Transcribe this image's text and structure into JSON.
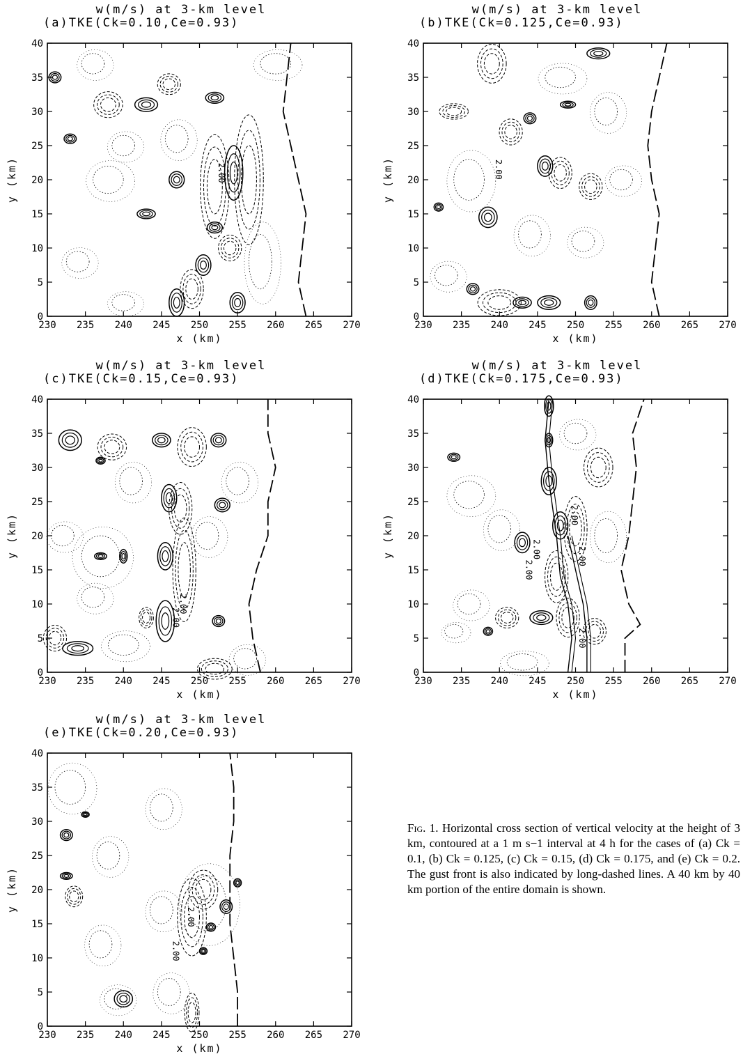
{
  "caption": {
    "lead": "Fig. 1.",
    "text": "Horizontal cross section of vertical velocity at the height of 3 km, contoured at a 1 m s−1 interval at 4 h for the cases of (a) Ck = 0.1, (b) Ck = 0.125, (c) Ck = 0.15, (d) Ck = 0.175, and (e) Ck = 0.2. The gust front is also indicated by long-dashed lines. A 40 km by 40 km portion of the entire domain is shown."
  },
  "chart_data": [
    {
      "type": "contour",
      "title": "w(m/s) at 3-km level",
      "subtitle": "(a)TKE(Ck=0.10,Ce=0.93)",
      "xlabel": "x (km)",
      "ylabel": "y (km)",
      "xlim": [
        230,
        270
      ],
      "ylim": [
        0,
        40
      ],
      "xticks": [
        230,
        235,
        240,
        245,
        250,
        255,
        260,
        265,
        270
      ],
      "yticks": [
        0,
        5,
        10,
        15,
        20,
        25,
        30,
        35,
        40
      ],
      "contour_interval": 1,
      "contour_labels": [
        {
          "text": "2.00",
          "x": 252.5,
          "y": 21
        }
      ],
      "gust_front": [
        [
          264,
          0
        ],
        [
          263,
          5
        ],
        [
          263.5,
          10
        ],
        [
          264,
          15
        ],
        [
          263,
          20
        ],
        [
          262,
          25
        ],
        [
          261,
          30
        ],
        [
          261.5,
          35
        ],
        [
          262,
          40
        ]
      ],
      "updrafts": [
        [
          254.5,
          21,
          1.2,
          4
        ],
        [
          247,
          2,
          1,
          2
        ],
        [
          243,
          31,
          1.5,
          1
        ],
        [
          252,
          32,
          1.2,
          0.8
        ],
        [
          250.5,
          7.5,
          1,
          1.5
        ],
        [
          233,
          26,
          0.8,
          0.7
        ],
        [
          252,
          13,
          1,
          0.8
        ],
        [
          247,
          20,
          1,
          1.2
        ],
        [
          243,
          15,
          1.2,
          0.7
        ],
        [
          231,
          35,
          0.8,
          0.8
        ],
        [
          255,
          2,
          1,
          1.5
        ]
      ],
      "downdrafts": [
        [
          256.5,
          20,
          1,
          5
        ],
        [
          252,
          19,
          1,
          4
        ],
        [
          249,
          4,
          0.8,
          1.5
        ],
        [
          238,
          31,
          1,
          1
        ],
        [
          246,
          34,
          0.8,
          0.8
        ],
        [
          254,
          10,
          0.8,
          1
        ]
      ],
      "weak": [
        [
          236,
          37,
          1.5,
          1.5
        ],
        [
          260,
          37,
          2,
          1.5
        ],
        [
          238,
          20,
          2,
          2
        ],
        [
          240,
          25,
          1.5,
          1.5
        ],
        [
          234,
          8,
          1.5,
          1.5
        ],
        [
          247,
          26,
          1.5,
          2
        ],
        [
          258,
          8,
          1.5,
          4
        ],
        [
          240,
          2,
          1.5,
          1.2
        ]
      ]
    },
    {
      "type": "contour",
      "title": "w(m/s) at 3-km level",
      "subtitle": "(b)TKE(Ck=0.125,Ce=0.93)",
      "xlabel": "x (km)",
      "ylabel": "y (km)",
      "xlim": [
        230,
        270
      ],
      "ylim": [
        0,
        40
      ],
      "xticks": [
        230,
        235,
        240,
        245,
        250,
        255,
        260,
        265,
        270
      ],
      "yticks": [
        0,
        5,
        10,
        15,
        20,
        25,
        30,
        35,
        40
      ],
      "contour_interval": 1,
      "contour_labels": [
        {
          "text": "2.00",
          "x": 239.5,
          "y": 21.5
        }
      ],
      "gust_front": [
        [
          261,
          0
        ],
        [
          260,
          5
        ],
        [
          260.5,
          10
        ],
        [
          261,
          15
        ],
        [
          260,
          20
        ],
        [
          259.5,
          25
        ],
        [
          260,
          30
        ],
        [
          261,
          35
        ],
        [
          262,
          40
        ]
      ],
      "updrafts": [
        [
          253,
          38.5,
          1.5,
          0.8
        ],
        [
          246.5,
          2,
          1.5,
          1
        ],
        [
          236.5,
          4,
          0.8,
          0.8
        ],
        [
          232,
          16,
          0.6,
          0.6
        ],
        [
          244,
          29,
          0.8,
          0.8
        ],
        [
          246,
          22,
          1,
          1.5
        ],
        [
          249,
          31,
          1,
          0.5
        ],
        [
          252,
          2,
          0.8,
          1
        ],
        [
          243,
          2,
          1.2,
          0.8
        ],
        [
          238.5,
          14.5,
          1.2,
          1.5
        ]
      ],
      "downdrafts": [
        [
          241.5,
          27,
          0.8,
          1
        ],
        [
          248,
          21,
          0.8,
          1.2
        ],
        [
          234,
          30,
          1,
          0.6
        ],
        [
          239,
          37,
          1,
          1.5
        ],
        [
          252,
          19,
          0.8,
          1
        ],
        [
          240,
          2,
          1.5,
          1
        ]
      ],
      "weak": [
        [
          236,
          20,
          2,
          3
        ],
        [
          244,
          12,
          1.5,
          2
        ],
        [
          251,
          11,
          1.5,
          1.5
        ],
        [
          256,
          20,
          1.5,
          1.5
        ],
        [
          254,
          30,
          1.5,
          2
        ],
        [
          248,
          35,
          2,
          1.5
        ],
        [
          233,
          6,
          1.5,
          1.5
        ]
      ]
    },
    {
      "type": "contour",
      "title": "w(m/s) at 3-km level",
      "subtitle": "(c)TKE(Ck=0.15,Ce=0.93)",
      "xlabel": "x (km)",
      "ylabel": "y (km)",
      "xlim": [
        230,
        270
      ],
      "ylim": [
        0,
        40
      ],
      "xticks": [
        230,
        235,
        240,
        245,
        250,
        255,
        260,
        265,
        270
      ],
      "yticks": [
        0,
        5,
        10,
        15,
        20,
        25,
        30,
        35,
        40
      ],
      "contour_interval": 1,
      "contour_labels": [
        {
          "text": "2.00",
          "x": 247.5,
          "y": 10
        },
        {
          "text": "2.00",
          "x": 246.5,
          "y": 8
        }
      ],
      "gust_front": [
        [
          258,
          0
        ],
        [
          257,
          5
        ],
        [
          256.5,
          10
        ],
        [
          257.5,
          15
        ],
        [
          259,
          20
        ],
        [
          259,
          25
        ],
        [
          260,
          30
        ],
        [
          259,
          35
        ],
        [
          259,
          40
        ]
      ],
      "updrafts": [
        [
          245.5,
          7.5,
          1.2,
          3
        ],
        [
          245.5,
          17,
          1,
          2
        ],
        [
          246,
          25.5,
          1,
          2
        ],
        [
          245,
          34,
          1.2,
          1
        ],
        [
          233,
          34,
          1.5,
          1.5
        ],
        [
          253,
          24.5,
          1,
          1
        ],
        [
          234,
          3.5,
          2,
          1
        ],
        [
          237,
          17,
          0.8,
          0.5
        ],
        [
          252.5,
          7.5,
          0.8,
          0.8
        ],
        [
          252.5,
          34,
          1,
          1
        ],
        [
          237,
          31,
          0.6,
          0.5
        ],
        [
          240,
          17,
          0.5,
          1
        ]
      ],
      "downdrafts": [
        [
          248,
          15,
          0.8,
          4
        ],
        [
          247.5,
          24,
          0.8,
          2
        ],
        [
          249,
          33,
          1,
          1.5
        ],
        [
          238.5,
          33,
          1,
          1
        ],
        [
          252,
          0.5,
          1.2,
          0.8
        ],
        [
          231,
          5,
          0.8,
          1
        ],
        [
          243,
          8,
          0.5,
          0.8
        ]
      ],
      "weak": [
        [
          237,
          17,
          2.5,
          3
        ],
        [
          232,
          20,
          1.5,
          1.5
        ],
        [
          241,
          28,
          1.5,
          2
        ],
        [
          255,
          28,
          1.5,
          2
        ],
        [
          251,
          20,
          1.5,
          2
        ],
        [
          240,
          4,
          2,
          1.5
        ],
        [
          256,
          2,
          1.5,
          1.5
        ],
        [
          236,
          11,
          1.5,
          1.5
        ]
      ]
    },
    {
      "type": "contour",
      "title": "w(m/s) at 3-km level",
      "subtitle": "(d)TKE(Ck=0.175,Ce=0.93)",
      "xlabel": "x (km)",
      "ylabel": "y (km)",
      "xlim": [
        230,
        270
      ],
      "ylim": [
        0,
        40
      ],
      "xticks": [
        230,
        235,
        240,
        245,
        250,
        255,
        260,
        265,
        270
      ],
      "yticks": [
        0,
        5,
        10,
        15,
        20,
        25,
        30,
        35,
        40
      ],
      "contour_interval": 1,
      "contour_labels": [
        {
          "text": "2.00",
          "x": 249.5,
          "y": 23
        },
        {
          "text": "2.00",
          "x": 244.5,
          "y": 18
        },
        {
          "text": "2.00",
          "x": 243.5,
          "y": 15
        },
        {
          "text": "2.00",
          "x": 250.5,
          "y": 17
        },
        {
          "text": "2.00",
          "x": 250.5,
          "y": 5
        }
      ],
      "gust_front": [
        [
          256.5,
          0
        ],
        [
          256.5,
          5
        ],
        [
          258.5,
          7
        ],
        [
          257,
          10
        ],
        [
          256,
          15
        ],
        [
          257,
          20
        ],
        [
          257.5,
          25
        ],
        [
          258,
          30
        ],
        [
          257.5,
          35
        ],
        [
          259,
          40
        ]
      ],
      "updrafts": [
        [
          246.5,
          28,
          1,
          2
        ],
        [
          248,
          21.5,
          1,
          2
        ],
        [
          245.5,
          8,
          1.5,
          1
        ],
        [
          243,
          19,
          1,
          1.5
        ],
        [
          238.5,
          6,
          0.6,
          0.6
        ],
        [
          234,
          31.5,
          0.8,
          0.6
        ],
        [
          246.5,
          39,
          0.6,
          1.5
        ],
        [
          246.5,
          34,
          0.5,
          1
        ]
      ],
      "downdrafts": [
        [
          250,
          21,
          0.8,
          2.5
        ],
        [
          247.5,
          14,
          0.8,
          2
        ],
        [
          249,
          8,
          0.8,
          1.5
        ],
        [
          241,
          8,
          0.8,
          0.8
        ],
        [
          253,
          30,
          1,
          1.5
        ],
        [
          252.5,
          6,
          0.8,
          1
        ]
      ],
      "weak": [
        [
          236,
          26,
          2,
          2
        ],
        [
          240,
          21,
          1.5,
          2
        ],
        [
          250,
          35,
          1.5,
          1.5
        ],
        [
          254,
          20,
          1.5,
          2.5
        ],
        [
          236,
          10,
          1.5,
          1.5
        ],
        [
          243,
          1.5,
          2,
          1.2
        ],
        [
          234,
          6,
          1.2,
          1
        ]
      ],
      "ridge": [
        [
          249,
          0
        ],
        [
          249.5,
          5
        ],
        [
          249,
          10
        ],
        [
          248,
          14
        ],
        [
          247.5,
          20
        ],
        [
          246.5,
          28
        ],
        [
          246,
          34
        ],
        [
          246.5,
          40
        ]
      ],
      "ridge2": [
        [
          251.5,
          0
        ],
        [
          251.5,
          5
        ],
        [
          251,
          10
        ],
        [
          250,
          15
        ],
        [
          249,
          20
        ]
      ]
    },
    {
      "type": "contour",
      "title": "w(m/s) at 3-km level",
      "subtitle": "(e)TKE(Ck=0.20,Ce=0.93)",
      "xlabel": "x (km)",
      "ylabel": "y (km)",
      "xlim": [
        230,
        270
      ],
      "ylim": [
        0,
        40
      ],
      "xticks": [
        230,
        235,
        240,
        245,
        250,
        255,
        260,
        265,
        270
      ],
      "yticks": [
        0,
        5,
        10,
        15,
        20,
        25,
        30,
        35,
        40
      ],
      "contour_interval": 1,
      "contour_labels": [
        {
          "text": "2.00",
          "x": 248.5,
          "y": 16
        },
        {
          "text": "2.00",
          "x": 246.5,
          "y": 11
        }
      ],
      "gust_front": [
        [
          255,
          0
        ],
        [
          255,
          5
        ],
        [
          254.5,
          10
        ],
        [
          254,
          15
        ],
        [
          254,
          20
        ],
        [
          254,
          25
        ],
        [
          254.5,
          30
        ],
        [
          254.5,
          35
        ],
        [
          254,
          40
        ]
      ],
      "updrafts": [
        [
          240,
          4,
          1.2,
          1.2
        ],
        [
          232.5,
          22,
          0.8,
          0.5
        ],
        [
          232.5,
          28,
          0.8,
          0.8
        ],
        [
          235,
          31,
          0.5,
          0.4
        ],
        [
          253.5,
          17.5,
          0.8,
          1
        ],
        [
          251.5,
          14.5,
          0.6,
          0.6
        ],
        [
          250.5,
          11,
          0.5,
          0.5
        ],
        [
          255,
          21,
          0.5,
          0.6
        ]
      ],
      "downdrafts": [
        [
          249,
          16,
          1,
          3
        ],
        [
          250.5,
          20,
          1,
          1.5
        ],
        [
          233.5,
          19,
          0.6,
          0.8
        ],
        [
          249,
          2,
          0.5,
          1.5
        ]
      ],
      "weak": [
        [
          233,
          35,
          2,
          2.5
        ],
        [
          238,
          25,
          1.5,
          2
        ],
        [
          245,
          32,
          1.5,
          2
        ],
        [
          237,
          12,
          1.5,
          2
        ],
        [
          245,
          17,
          1.5,
          2
        ],
        [
          251,
          18,
          2.5,
          4
        ],
        [
          239,
          4,
          1.5,
          1.5
        ],
        [
          246,
          5,
          1.5,
          2
        ]
      ]
    }
  ]
}
